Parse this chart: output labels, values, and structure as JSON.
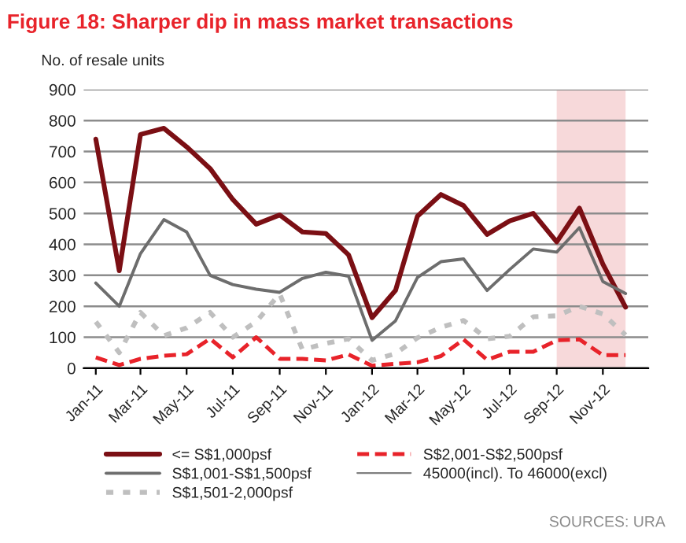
{
  "chart_data": {
    "type": "line",
    "title": "Figure 18: Sharper dip in mass market transactions",
    "ylabel": "No. of resale units",
    "x": [
      "2011-01",
      "2011-02",
      "2011-03",
      "2011-04",
      "2011-05",
      "2011-06",
      "2011-07",
      "2011-08",
      "2011-09",
      "2011-10",
      "2011-11",
      "2011-12",
      "2012-01",
      "2012-02",
      "2012-03",
      "2012-04",
      "2012-05",
      "2012-06",
      "2012-07",
      "2012-08",
      "2012-09",
      "2012-10",
      "2012-11",
      "2012-12"
    ],
    "series": [
      {
        "name": "<= S$1,000psf",
        "color": "#7b0f14",
        "line_style": "solid",
        "values": [
          740,
          315,
          755,
          775,
          715,
          645,
          545,
          465,
          495,
          440,
          435,
          366,
          163,
          251,
          491,
          561,
          525,
          432,
          476,
          500,
          408,
          517,
          336,
          197
        ]
      },
      {
        "name": "S$1,001-S$1,500psf",
        "color": "#6d6d6d",
        "line_style": "solid",
        "values": [
          275,
          200,
          370,
          480,
          440,
          300,
          270,
          255,
          245,
          290,
          310,
          297,
          90,
          153,
          293,
          344,
          353,
          251,
          319,
          385,
          375,
          454,
          280,
          241
        ]
      },
      {
        "name": "S$1,501-2,000psf",
        "color": "#bfbfbf",
        "line_style": "dotted",
        "values": [
          150,
          50,
          180,
          105,
          130,
          180,
          100,
          150,
          240,
          60,
          80,
          95,
          25,
          47,
          98,
          132,
          154,
          95,
          103,
          166,
          169,
          200,
          175,
          107
        ]
      },
      {
        "name": "S$2,001-S$2,500psf",
        "color": "#e8232a",
        "line_style": "dashed",
        "values": [
          35,
          10,
          30,
          40,
          45,
          95,
          35,
          100,
          30,
          30,
          25,
          44,
          8,
          14,
          19,
          39,
          93,
          27,
          53,
          53,
          90,
          93,
          42,
          42
        ]
      },
      {
        "name": "45000(incl). To 46000(excl)",
        "color": "#7f7f7f",
        "line_style": "solid",
        "values": [
          null,
          null,
          null,
          null,
          null,
          null,
          null,
          null,
          null,
          null,
          null,
          null,
          null,
          null,
          null,
          null,
          null,
          null,
          null,
          null,
          null,
          null,
          null,
          null
        ]
      }
    ],
    "xlim": [
      "2010-12-16",
      "2012-12-31"
    ],
    "xticks": [
      {
        "value": "2011-01",
        "label": "Jan-11"
      },
      {
        "value": "2011-03",
        "label": "Mar-11"
      },
      {
        "value": "2011-05",
        "label": "May-11"
      },
      {
        "value": "2011-07",
        "label": "Jul-11"
      },
      {
        "value": "2011-09",
        "label": "Sep-11"
      },
      {
        "value": "2011-11",
        "label": "Nov-11"
      },
      {
        "value": "2012-01",
        "label": "Jan-12"
      },
      {
        "value": "2012-03",
        "label": "Mar-12"
      },
      {
        "value": "2012-05",
        "label": "May-12"
      },
      {
        "value": "2012-07",
        "label": "Jul-12"
      },
      {
        "value": "2012-09",
        "label": "Sep-12"
      },
      {
        "value": "2012-11",
        "label": "Nov-12"
      }
    ],
    "ylim": [
      0,
      900
    ],
    "yticks": [
      0,
      100,
      200,
      300,
      400,
      500,
      600,
      700,
      800,
      900
    ],
    "bands": [
      {
        "axis": "x",
        "from": "2012-09",
        "to": "2012-12",
        "color": "#f7d9da"
      }
    ],
    "grid": "y",
    "legend": "bottom",
    "marker": "none",
    "annotations": [
      "SOURCES: URA"
    ]
  }
}
